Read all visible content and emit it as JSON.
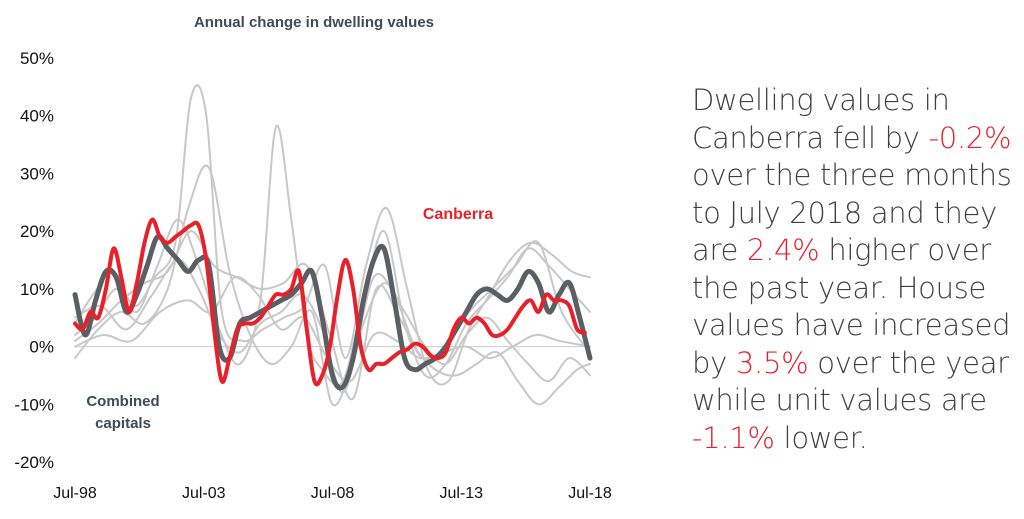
{
  "chart_data": {
    "type": "line",
    "title": "Annual change in dwelling values",
    "ylim": [
      -20,
      50
    ],
    "yticks": [
      "50%",
      "40%",
      "30%",
      "20%",
      "10%",
      "0%",
      "-10%",
      "-20%"
    ],
    "ytick_values": [
      50,
      40,
      30,
      20,
      10,
      0,
      -10,
      -20
    ],
    "xlim": [
      1998.5,
      2018.5
    ],
    "xticks": [
      "Jul-98",
      "Jul-03",
      "Jul-08",
      "Jul-13",
      "Jul-18"
    ],
    "xtick_values": [
      1998.5,
      2003.5,
      2008.5,
      2013.5,
      2018.5
    ],
    "annotations": {
      "canberra": "Canberra",
      "combined_line1": "Combined",
      "combined_line2": "capitals"
    },
    "colors": {
      "canberra": "#e8202a",
      "combined": "#5b5f63",
      "others": "#c8c8c8",
      "zero_line": "#cccccc"
    },
    "series": [
      {
        "name": "Canberra",
        "x": [
          1998.5,
          1998.8,
          1999.1,
          1999.4,
          1999.7,
          2000.0,
          2000.3,
          2000.6,
          2000.9,
          2001.2,
          2001.5,
          2001.8,
          2002.1,
          2002.4,
          2002.7,
          2003.0,
          2003.3,
          2003.6,
          2003.9,
          2004.2,
          2004.5,
          2004.8,
          2005.1,
          2005.4,
          2005.7,
          2006.0,
          2006.3,
          2006.6,
          2006.9,
          2007.2,
          2007.5,
          2007.8,
          2008.1,
          2008.4,
          2008.7,
          2009.0,
          2009.3,
          2009.6,
          2009.9,
          2010.2,
          2010.5,
          2010.8,
          2011.1,
          2011.4,
          2011.7,
          2012.0,
          2012.3,
          2012.6,
          2012.9,
          2013.2,
          2013.5,
          2013.8,
          2014.1,
          2014.4,
          2014.7,
          2015.0,
          2015.3,
          2015.6,
          2015.9,
          2016.2,
          2016.5,
          2016.8,
          2017.1,
          2017.4,
          2017.7,
          2018.0,
          2018.3
        ],
        "values": [
          4,
          3,
          6,
          5,
          10,
          17,
          12,
          6,
          11,
          18,
          22,
          19,
          18,
          19,
          20,
          21,
          21,
          15,
          3,
          -6,
          -2,
          3,
          4,
          4,
          5,
          7,
          9,
          9,
          10,
          13,
          3,
          -6,
          -5,
          0,
          9,
          15,
          10,
          0,
          -4,
          -3,
          -3,
          -2,
          -1,
          -0.5,
          0.5,
          0,
          -1.5,
          -2,
          -1,
          3,
          5,
          4,
          5,
          4,
          2,
          2,
          3,
          5,
          7,
          8,
          6,
          9,
          8,
          8,
          7,
          3,
          2.4
        ]
      },
      {
        "name": "Combined capitals",
        "x": [
          1998.5,
          1998.9,
          1999.3,
          1999.7,
          2000.1,
          2000.5,
          2000.9,
          2001.3,
          2001.7,
          2002.1,
          2002.5,
          2002.9,
          2003.3,
          2003.7,
          2004.1,
          2004.5,
          2004.9,
          2005.3,
          2005.7,
          2006.1,
          2006.5,
          2006.9,
          2007.3,
          2007.7,
          2008.1,
          2008.5,
          2008.9,
          2009.3,
          2009.7,
          2010.1,
          2010.5,
          2010.9,
          2011.3,
          2011.7,
          2012.1,
          2012.5,
          2012.9,
          2013.3,
          2013.7,
          2014.1,
          2014.5,
          2014.9,
          2015.3,
          2015.7,
          2016.1,
          2016.5,
          2016.9,
          2017.3,
          2017.7,
          2018.1,
          2018.5
        ],
        "values": [
          9,
          2,
          8,
          13,
          12,
          6,
          9,
          14,
          19,
          17,
          15,
          13,
          15,
          14,
          0,
          -2,
          4,
          5,
          6,
          7,
          8,
          9,
          11,
          13,
          5,
          -5,
          -7,
          -2,
          8,
          15,
          17,
          8,
          -2,
          -4,
          -3,
          -2,
          0,
          3,
          6,
          9,
          10,
          9,
          8,
          10,
          13,
          11,
          6,
          9,
          11,
          5,
          -2
        ]
      },
      {
        "name": "Other capital 1",
        "x": [
          1998.5,
          1999.2,
          2000.0,
          2000.8,
          2001.6,
          2002.4,
          2003.0,
          2003.6,
          2004.2,
          2005.0,
          2005.8,
          2006.6,
          2007.4,
          2008.2,
          2009.0,
          2009.8,
          2010.6,
          2011.4,
          2012.2,
          2013.0,
          2013.8,
          2014.6,
          2015.4,
          2016.2,
          2017.0,
          2017.8,
          2018.5
        ],
        "values": [
          4,
          9,
          13,
          7,
          12,
          18,
          43,
          40,
          6,
          1,
          3,
          5,
          7,
          14,
          -2,
          14,
          24,
          10,
          -4,
          -6,
          3,
          9,
          15,
          18,
          16,
          13,
          12
        ]
      },
      {
        "name": "Other capital 2",
        "x": [
          1998.5,
          1999.3,
          2000.1,
          2000.9,
          2001.7,
          2002.5,
          2003.3,
          2004.1,
          2004.9,
          2005.7,
          2006.3,
          2006.9,
          2007.5,
          2008.1,
          2008.9,
          2009.7,
          2010.5,
          2011.3,
          2012.1,
          2012.9,
          2013.7,
          2014.5,
          2015.3,
          2016.1,
          2016.9,
          2017.7,
          2018.5
        ],
        "values": [
          2,
          5,
          10,
          6,
          14,
          22,
          14,
          3,
          -3,
          8,
          38,
          22,
          2,
          -4,
          -6,
          8,
          20,
          4,
          -5,
          -3,
          4,
          8,
          12,
          17,
          14,
          10,
          6
        ]
      },
      {
        "name": "Other capital 3",
        "x": [
          1998.5,
          1999.4,
          2000.3,
          2001.2,
          2002.1,
          2002.9,
          2003.7,
          2004.5,
          2005.3,
          2006.1,
          2006.9,
          2007.7,
          2008.5,
          2009.3,
          2010.1,
          2010.9,
          2011.7,
          2012.5,
          2013.3,
          2014.1,
          2014.9,
          2015.7,
          2016.5,
          2017.3,
          2018.0,
          2018.5
        ],
        "values": [
          -2,
          3,
          6,
          4,
          10,
          24,
          31,
          13,
          2,
          -3,
          0,
          6,
          -10,
          -2,
          12,
          9,
          0,
          -4,
          -5,
          -3,
          -1,
          -6,
          -10,
          -7,
          -4,
          -3
        ]
      },
      {
        "name": "Other capital 4",
        "x": [
          1998.5,
          1999.5,
          2000.5,
          2001.5,
          2002.5,
          2003.3,
          2004.1,
          2004.9,
          2005.7,
          2006.5,
          2007.3,
          2008.1,
          2008.9,
          2009.7,
          2010.5,
          2011.3,
          2012.1,
          2012.9,
          2013.7,
          2014.5,
          2015.3,
          2016.1,
          2016.9,
          2017.7,
          2018.5
        ],
        "values": [
          5,
          7,
          3,
          9,
          15,
          10,
          2,
          -1,
          4,
          6,
          9,
          3,
          -8,
          4,
          11,
          6,
          0,
          -3,
          2,
          5,
          1,
          -3,
          -6,
          -2,
          -5
        ]
      },
      {
        "name": "Other capital 5",
        "x": [
          1998.5,
          1999.4,
          2000.3,
          2001.2,
          2002.1,
          2003.0,
          2003.9,
          2004.8,
          2005.7,
          2006.6,
          2007.5,
          2008.4,
          2009.3,
          2010.2,
          2011.1,
          2012.0,
          2012.9,
          2013.8,
          2014.7,
          2015.6,
          2016.5,
          2017.4,
          2018.5
        ],
        "values": [
          1,
          4,
          8,
          11,
          13,
          20,
          14,
          12,
          10,
          11,
          14,
          2,
          -9,
          10,
          5,
          -2,
          0,
          6,
          10,
          14,
          18,
          6,
          -1
        ]
      },
      {
        "name": "Other capital 6",
        "x": [
          1998.5,
          1999.6,
          2000.7,
          2001.8,
          2002.9,
          2003.8,
          2004.7,
          2005.6,
          2006.5,
          2007.4,
          2008.3,
          2009.2,
          2010.1,
          2011.0,
          2011.9,
          2012.8,
          2013.7,
          2014.6,
          2015.5,
          2016.4,
          2017.3,
          2018.5
        ],
        "values": [
          0,
          2,
          1,
          6,
          8,
          6,
          12,
          9,
          3,
          5,
          -2,
          -6,
          2,
          1,
          -2,
          -1,
          0,
          -2,
          0,
          2,
          1,
          0
        ]
      }
    ]
  },
  "side_text": {
    "p1": "Dwelling values in Canberra fell by ",
    "v1": "-0.2%",
    "p2": " over the three months to July 2018 and they are ",
    "v2": "2.4%",
    "p3": " higher over the past year. House values have increased by ",
    "v3": "3.5%",
    "p4": " over the year while unit values are ",
    "v4": "-1.1%",
    "p5": " lower."
  }
}
